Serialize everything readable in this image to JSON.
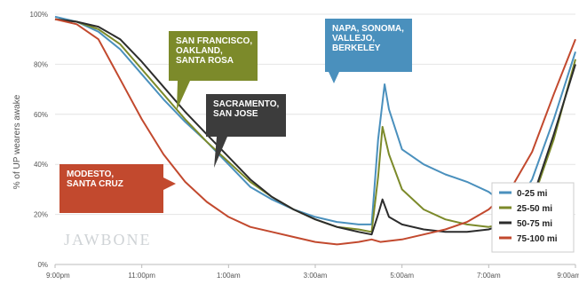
{
  "chart_data": {
    "type": "line",
    "ylabel": "% of UP wearers awake",
    "x_ticks": [
      "9:00pm",
      "11:00pm",
      "1:00am",
      "3:00am",
      "5:00am",
      "7:00am",
      "9:00am"
    ],
    "y_ticks": [
      "0%",
      "20%",
      "40%",
      "60%",
      "80%",
      "100%"
    ],
    "xlim": [
      0,
      12
    ],
    "ylim": [
      0,
      100
    ],
    "grid": true,
    "legend_position": "bottom-right",
    "watermark": "JAWBONE",
    "series": [
      {
        "name": "0-25 mi",
        "color": "#4a90bd",
        "points": [
          [
            0,
            99
          ],
          [
            0.5,
            97
          ],
          [
            1,
            93
          ],
          [
            1.5,
            86
          ],
          [
            2,
            76
          ],
          [
            2.5,
            66
          ],
          [
            3,
            57
          ],
          [
            3.5,
            49
          ],
          [
            4,
            40
          ],
          [
            4.5,
            31
          ],
          [
            5,
            26
          ],
          [
            5.5,
            22
          ],
          [
            6,
            19
          ],
          [
            6.5,
            17
          ],
          [
            7,
            16
          ],
          [
            7.3,
            16
          ],
          [
            7.45,
            50
          ],
          [
            7.6,
            72
          ],
          [
            7.7,
            62
          ],
          [
            8,
            46
          ],
          [
            8.5,
            40
          ],
          [
            9,
            36
          ],
          [
            9.5,
            33
          ],
          [
            10,
            29
          ],
          [
            10.3,
            25
          ],
          [
            10.6,
            23
          ],
          [
            11,
            34
          ],
          [
            11.5,
            58
          ],
          [
            12,
            85
          ]
        ]
      },
      {
        "name": "25-50 mi",
        "color": "#7c8a2a",
        "points": [
          [
            0,
            98
          ],
          [
            0.5,
            97
          ],
          [
            1,
            94
          ],
          [
            1.5,
            88
          ],
          [
            2,
            78
          ],
          [
            2.5,
            68
          ],
          [
            3,
            58
          ],
          [
            3.5,
            49
          ],
          [
            4,
            41
          ],
          [
            4.5,
            33
          ],
          [
            5,
            27
          ],
          [
            5.5,
            22
          ],
          [
            6,
            18
          ],
          [
            6.5,
            15
          ],
          [
            7,
            14
          ],
          [
            7.3,
            13
          ],
          [
            7.45,
            35
          ],
          [
            7.55,
            55
          ],
          [
            7.7,
            44
          ],
          [
            8,
            30
          ],
          [
            8.5,
            22
          ],
          [
            9,
            18
          ],
          [
            9.5,
            16
          ],
          [
            10,
            15
          ],
          [
            10.5,
            17
          ],
          [
            11,
            25
          ],
          [
            11.5,
            50
          ],
          [
            12,
            82
          ]
        ]
      },
      {
        "name": "50-75 mi",
        "color": "#2c2c2c",
        "points": [
          [
            0,
            98
          ],
          [
            0.5,
            97
          ],
          [
            1,
            95
          ],
          [
            1.5,
            90
          ],
          [
            2,
            81
          ],
          [
            2.5,
            71
          ],
          [
            3,
            61
          ],
          [
            3.5,
            52
          ],
          [
            4,
            43
          ],
          [
            4.5,
            34
          ],
          [
            5,
            27
          ],
          [
            5.5,
            22
          ],
          [
            6,
            18
          ],
          [
            6.5,
            15
          ],
          [
            7,
            13
          ],
          [
            7.3,
            12
          ],
          [
            7.45,
            20
          ],
          [
            7.55,
            26
          ],
          [
            7.7,
            19
          ],
          [
            8,
            16
          ],
          [
            8.5,
            14
          ],
          [
            9,
            13
          ],
          [
            9.5,
            13
          ],
          [
            10,
            14
          ],
          [
            10.5,
            17
          ],
          [
            11,
            26
          ],
          [
            11.5,
            52
          ],
          [
            12,
            80
          ]
        ]
      },
      {
        "name": "75-100 mi",
        "color": "#c2492e",
        "points": [
          [
            0,
            98
          ],
          [
            0.5,
            96
          ],
          [
            1,
            90
          ],
          [
            1.5,
            74
          ],
          [
            2,
            58
          ],
          [
            2.5,
            44
          ],
          [
            3,
            33
          ],
          [
            3.5,
            25
          ],
          [
            4,
            19
          ],
          [
            4.5,
            15
          ],
          [
            5,
            13
          ],
          [
            5.5,
            11
          ],
          [
            6,
            9
          ],
          [
            6.5,
            8
          ],
          [
            7,
            9
          ],
          [
            7.3,
            10
          ],
          [
            7.5,
            9
          ],
          [
            8,
            10
          ],
          [
            8.5,
            12
          ],
          [
            9,
            14
          ],
          [
            9.5,
            17
          ],
          [
            10,
            22
          ],
          [
            10.5,
            30
          ],
          [
            11,
            45
          ],
          [
            11.5,
            68
          ],
          [
            12,
            90
          ]
        ]
      }
    ],
    "annotations": [
      {
        "text": [
          "SAN FRANCISCO,",
          "OAKLAND,",
          "SANTA ROSA"
        ],
        "color": "#7c8a2a"
      },
      {
        "text": [
          "SACRAMENTO,",
          "SAN JOSE"
        ],
        "color": "#3c3c3c"
      },
      {
        "text": [
          "NAPA, SONOMA,",
          "VALLEJO,",
          "BERKELEY"
        ],
        "color": "#4a90bd"
      },
      {
        "text": [
          "MODESTO,",
          "SANTA CRUZ"
        ],
        "color": "#c2492e"
      }
    ]
  }
}
